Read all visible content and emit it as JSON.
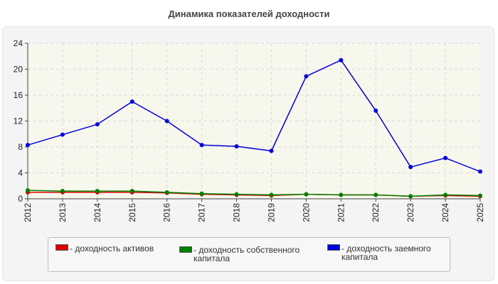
{
  "chart_data": {
    "type": "line",
    "title": "Динамика показателей доходности",
    "xlabel": "",
    "ylabel": "",
    "x": [
      "2012",
      "2013",
      "2014",
      "2015",
      "2016",
      "2017",
      "2018",
      "2019",
      "2020",
      "2021",
      "2022",
      "2023",
      "2024",
      "2025"
    ],
    "ylim": [
      0,
      24
    ],
    "yticks": [
      "0",
      "4",
      "8",
      "12",
      "16",
      "20",
      "24"
    ],
    "grid": true,
    "legend_position": "bottom",
    "series": [
      {
        "name": "- доходность активов",
        "color": "#dd0000",
        "values": [
          1.0,
          1.0,
          1.0,
          1.0,
          0.9,
          0.7,
          0.6,
          0.5,
          0.7,
          0.6,
          0.6,
          0.4,
          0.5,
          0.4
        ]
      },
      {
        "name": "- доходность собственного капитала",
        "color": "#008000",
        "values": [
          1.3,
          1.2,
          1.2,
          1.2,
          1.0,
          0.8,
          0.7,
          0.6,
          0.7,
          0.6,
          0.6,
          0.4,
          0.6,
          0.5
        ]
      },
      {
        "name": "- доходность заемного капитала",
        "color": "#0000dd",
        "values": [
          8.3,
          9.9,
          11.5,
          15.0,
          12.0,
          8.3,
          8.1,
          7.4,
          18.9,
          21.4,
          13.6,
          4.9,
          6.3,
          4.2
        ]
      }
    ]
  }
}
